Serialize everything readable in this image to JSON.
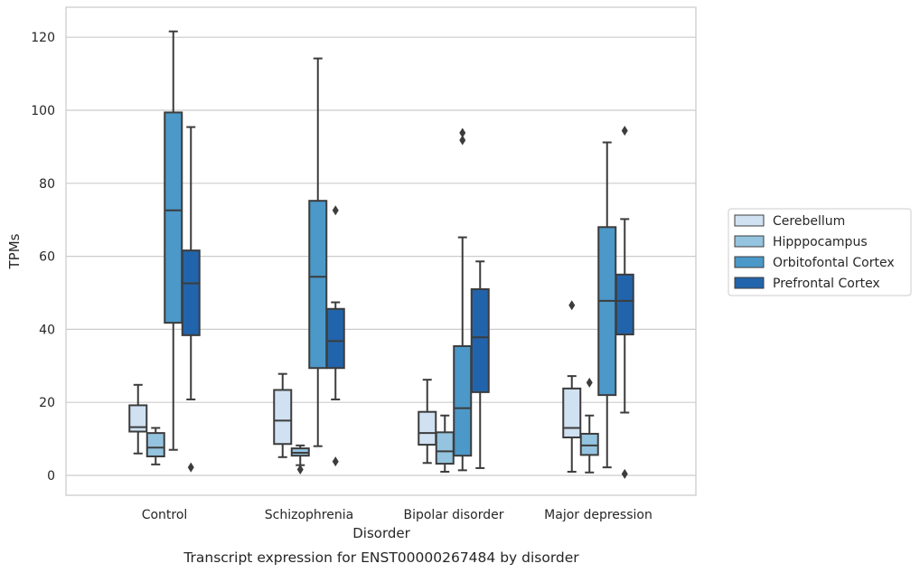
{
  "chart_data": {
    "type": "boxplot",
    "xlabel": "Disorder",
    "ylabel": "TPMs",
    "caption": "Transcript expression for ENST00000267484 by disorder",
    "ylim": [
      -5.5,
      128
    ],
    "yticks": [
      0,
      20,
      40,
      60,
      80,
      100,
      120
    ],
    "grid": "horizontal",
    "legend_position": "right",
    "categories": [
      "Control",
      "Schizophrenia",
      "Bipolar disorder",
      "Major depression"
    ],
    "series": [
      {
        "name": "Cerebellum",
        "color": "#d0e1f2",
        "boxes": [
          {
            "whisker_low": 6,
            "q1": 12,
            "median": 13.2,
            "q3": 19.2,
            "whisker_high": 24.8,
            "outliers": []
          },
          {
            "whisker_low": 5,
            "q1": 8.6,
            "median": 15,
            "q3": 23.4,
            "whisker_high": 27.8,
            "outliers": []
          },
          {
            "whisker_low": 3.4,
            "q1": 8.4,
            "median": 11.6,
            "q3": 17.4,
            "whisker_high": 26.2,
            "outliers": []
          },
          {
            "whisker_low": 1,
            "q1": 10.4,
            "median": 13,
            "q3": 23.8,
            "whisker_high": 27.2,
            "outliers": [
              46.6
            ]
          }
        ]
      },
      {
        "name": "Hipppocampus",
        "color": "#94c4df",
        "boxes": [
          {
            "whisker_low": 3,
            "q1": 5.2,
            "median": 7.6,
            "q3": 11.6,
            "whisker_high": 13,
            "outliers": []
          },
          {
            "whisker_low": 2.8,
            "q1": 5.4,
            "median": 6.2,
            "q3": 7.4,
            "whisker_high": 8.2,
            "outliers": [
              1.6
            ]
          },
          {
            "whisker_low": 1,
            "q1": 3.2,
            "median": 6.6,
            "q3": 11.8,
            "whisker_high": 16.4,
            "outliers": []
          },
          {
            "whisker_low": 0.8,
            "q1": 5.6,
            "median": 8.2,
            "q3": 11.4,
            "whisker_high": 16.4,
            "outliers": [
              25.4
            ]
          }
        ]
      },
      {
        "name": "Orbitofontal Cortex",
        "color": "#4b98c9",
        "boxes": [
          {
            "whisker_low": 7,
            "q1": 41.8,
            "median": 72.6,
            "q3": 99.4,
            "whisker_high": 121.6,
            "outliers": []
          },
          {
            "whisker_low": 8,
            "q1": 29.4,
            "median": 54.4,
            "q3": 75.2,
            "whisker_high": 114.2,
            "outliers": []
          },
          {
            "whisker_low": 1.4,
            "q1": 5.4,
            "median": 18.4,
            "q3": 35.4,
            "whisker_high": 65.2,
            "outliers": [
              91.8,
              93.8
            ]
          },
          {
            "whisker_low": 2.2,
            "q1": 22,
            "median": 47.8,
            "q3": 68,
            "whisker_high": 91.2,
            "outliers": []
          }
        ]
      },
      {
        "name": "Prefrontal Cortex",
        "color": "#2264ab",
        "boxes": [
          {
            "whisker_low": 20.8,
            "q1": 38.4,
            "median": 52.6,
            "q3": 61.6,
            "whisker_high": 95.4,
            "outliers": [
              2.2
            ]
          },
          {
            "whisker_low": 20.8,
            "q1": 29.4,
            "median": 36.8,
            "q3": 45.6,
            "whisker_high": 47.4,
            "outliers": [
              3.8,
              72.6
            ]
          },
          {
            "whisker_low": 2,
            "q1": 22.8,
            "median": 37.8,
            "q3": 51,
            "whisker_high": 58.6,
            "outliers": []
          },
          {
            "whisker_low": 17.2,
            "q1": 38.6,
            "median": 47.8,
            "q3": 55,
            "whisker_high": 70.2,
            "outliers": [
              0.4,
              94.4
            ]
          }
        ]
      }
    ]
  },
  "colors": {
    "grid": "#cccccc",
    "frame": "#cccccc",
    "edge": "#3c3c3c",
    "text": "#262626"
  }
}
